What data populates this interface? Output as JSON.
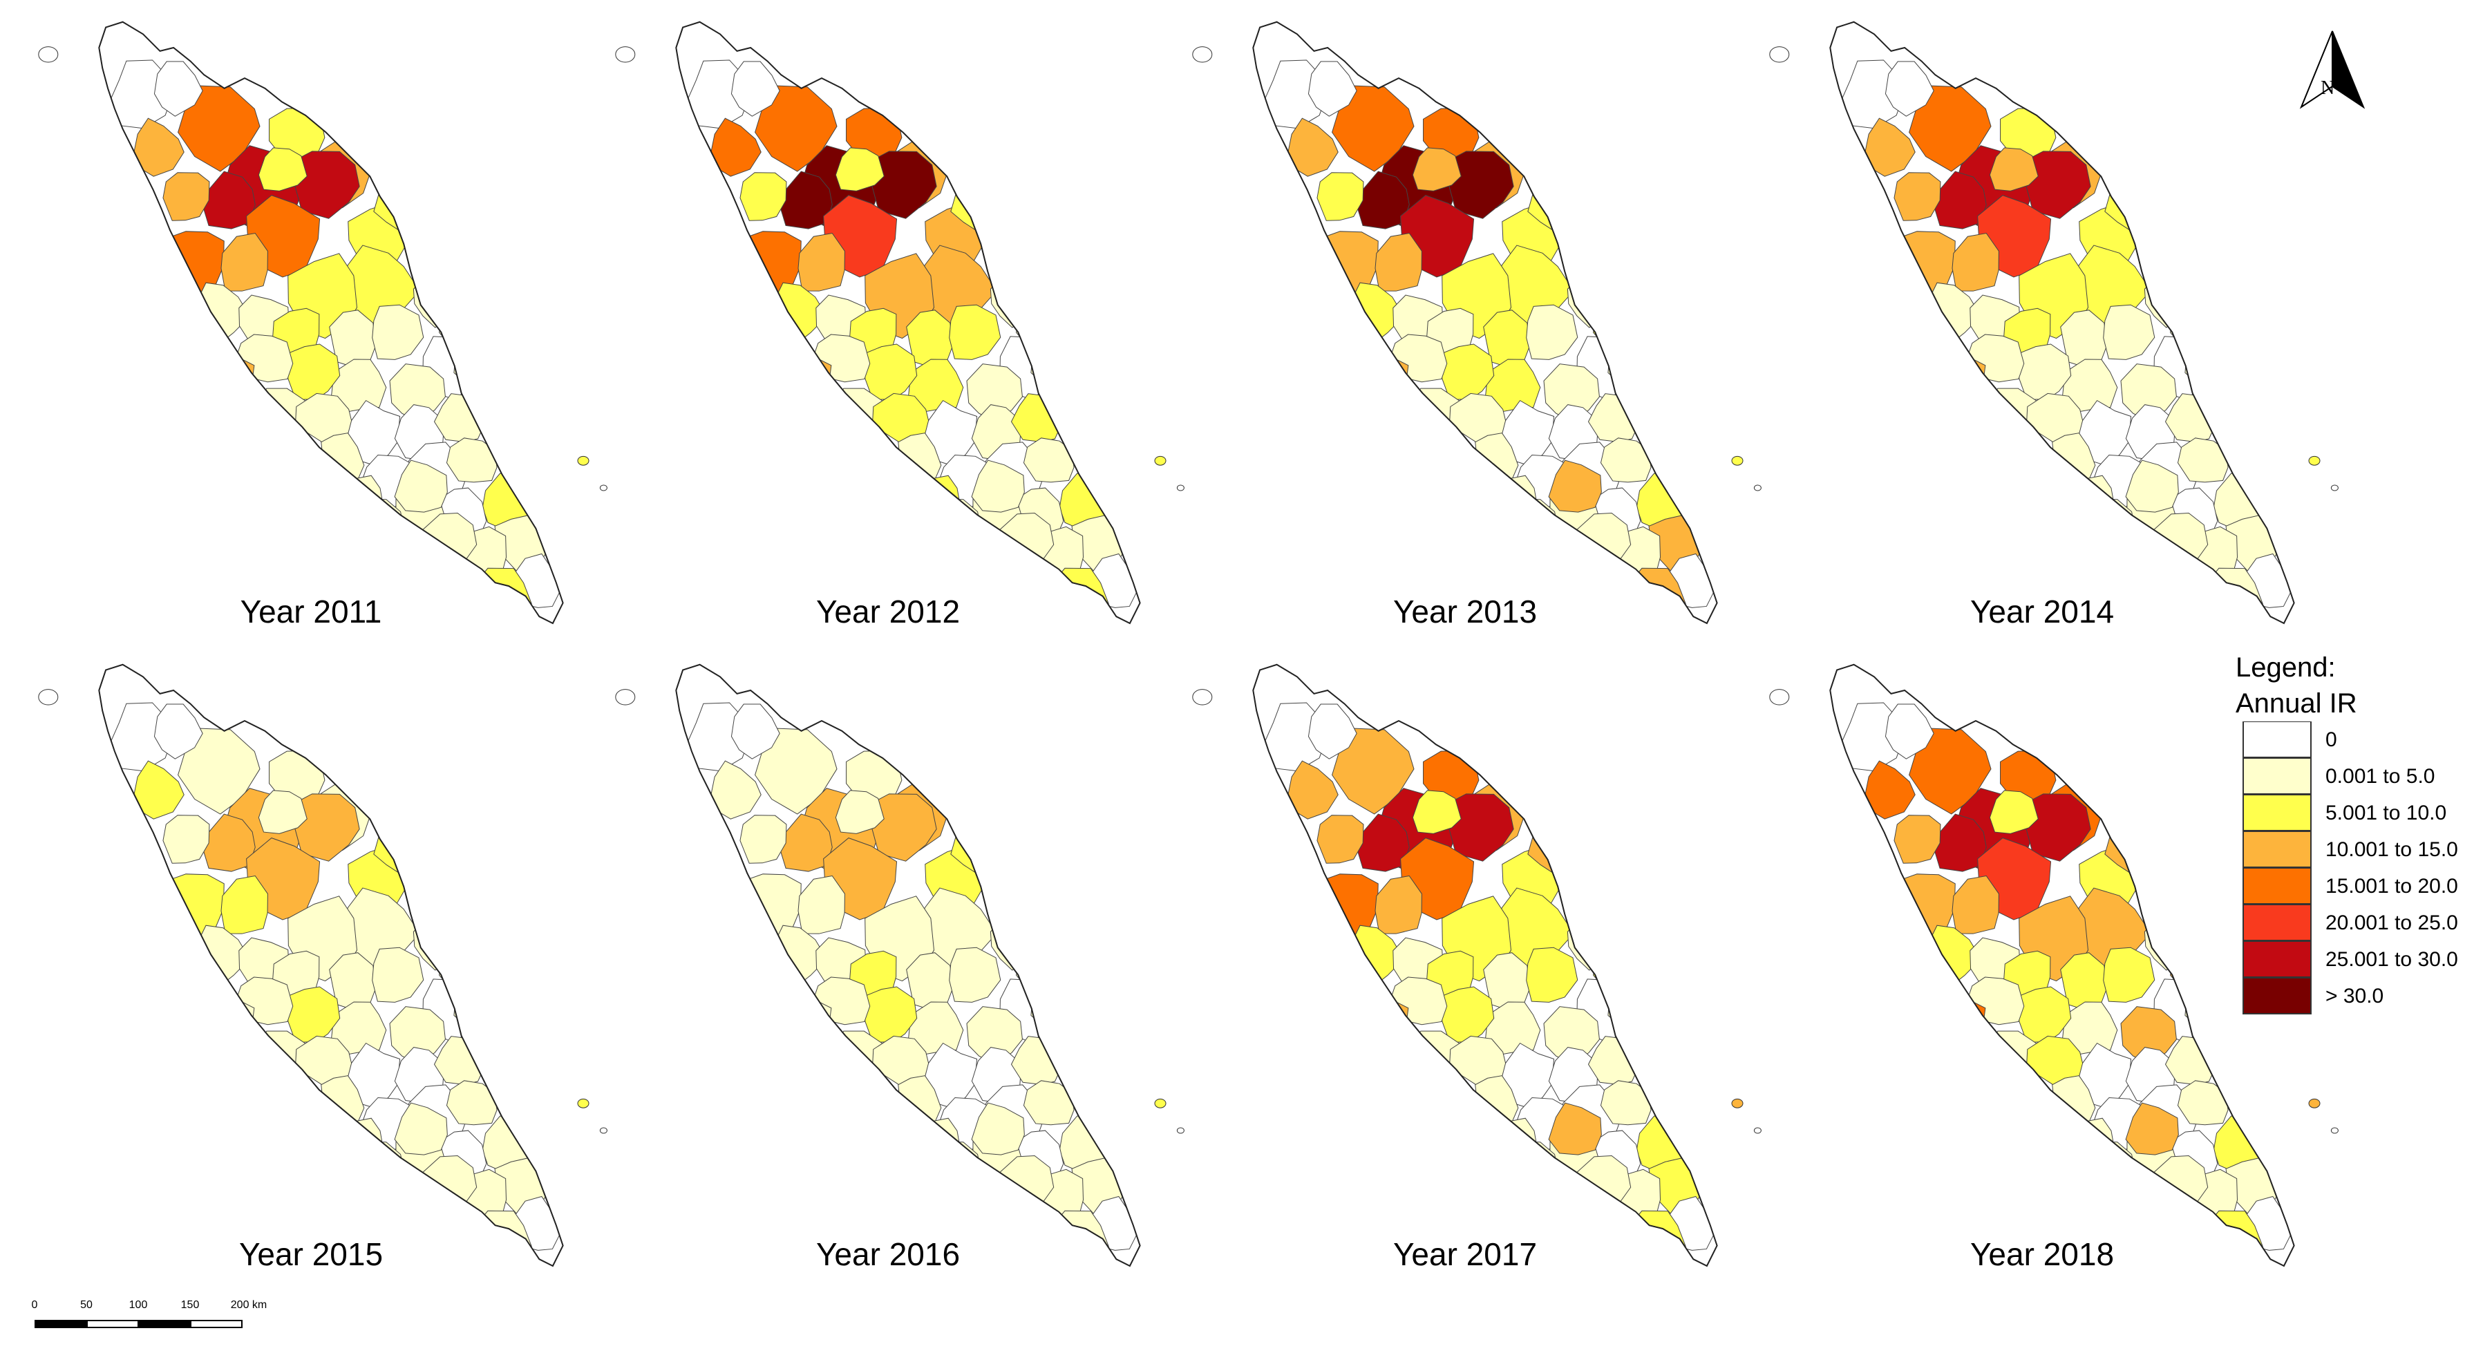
{
  "titles": [
    "Year 2011",
    "Year 2012",
    "Year 2013",
    "Year 2014",
    "Year 2015",
    "Year 2016",
    "Year 2017",
    "Year 2018"
  ],
  "north_label": "N",
  "legend": {
    "title_line1": "Legend:",
    "title_line2": "Annual IR",
    "classes": [
      {
        "label": "0",
        "color": "#ffffff"
      },
      {
        "label": "0.001 to 5.0",
        "color": "#ffffcc"
      },
      {
        "label": "5.001 to 10.0",
        "color": "#ffff4d"
      },
      {
        "label": "10.001 to 15.0",
        "color": "#fdb43c"
      },
      {
        "label": "15.001 to 20.0",
        "color": "#fd7100"
      },
      {
        "label": "20.001 to 25.0",
        "color": "#f93a1e"
      },
      {
        "label": "25.001 to 30.0",
        "color": "#c20a12"
      },
      {
        "label": "> 30.0",
        "color": "#780000"
      }
    ]
  },
  "scale_bar": {
    "ticks": [
      "0",
      "50",
      "100",
      "150",
      "200 km"
    ]
  },
  "district_classes_by_year": [
    [
      0,
      4,
      2,
      3,
      6,
      6,
      6,
      3,
      3,
      2,
      2,
      4,
      4,
      3,
      2,
      2,
      1,
      1,
      2,
      1,
      1,
      0,
      1,
      1,
      2,
      1,
      3,
      1,
      1,
      0,
      0,
      1,
      0,
      0,
      1,
      0,
      1,
      2,
      0,
      1,
      1,
      1,
      1,
      0,
      2,
      1,
      1,
      1,
      1,
      0,
      1,
      0,
      2,
      1,
      1,
      1
    ],
    [
      0,
      4,
      4,
      3,
      7,
      7,
      7,
      4,
      2,
      3,
      2,
      5,
      4,
      3,
      3,
      3,
      2,
      1,
      2,
      2,
      2,
      0,
      1,
      2,
      2,
      1,
      3,
      1,
      2,
      0,
      1,
      2,
      0,
      0,
      1,
      0,
      1,
      2,
      1,
      1,
      1,
      1,
      1,
      0,
      2,
      1,
      1,
      2,
      1,
      0,
      1,
      1,
      2,
      1,
      1,
      1
    ],
    [
      0,
      4,
      4,
      3,
      7,
      7,
      7,
      3,
      2,
      2,
      3,
      6,
      3,
      3,
      2,
      2,
      2,
      1,
      1,
      2,
      1,
      0,
      1,
      2,
      2,
      1,
      3,
      1,
      1,
      0,
      0,
      1,
      0,
      0,
      1,
      0,
      1,
      2,
      0,
      1,
      1,
      3,
      1,
      0,
      3,
      1,
      3,
      1,
      1,
      0,
      1,
      0,
      2,
      1,
      2,
      1
    ],
    [
      0,
      4,
      2,
      3,
      6,
      6,
      6,
      3,
      3,
      2,
      3,
      5,
      3,
      3,
      2,
      2,
      1,
      1,
      2,
      1,
      1,
      0,
      1,
      1,
      1,
      1,
      3,
      1,
      1,
      0,
      0,
      1,
      0,
      0,
      1,
      0,
      1,
      1,
      0,
      1,
      1,
      1,
      1,
      0,
      1,
      1,
      1,
      1,
      1,
      0,
      1,
      0,
      2,
      1,
      1,
      1
    ],
    [
      0,
      1,
      1,
      1,
      3,
      3,
      3,
      2,
      1,
      2,
      1,
      3,
      2,
      2,
      1,
      1,
      1,
      1,
      1,
      1,
      1,
      0,
      1,
      1,
      2,
      1,
      1,
      1,
      1,
      0,
      0,
      1,
      0,
      0,
      1,
      0,
      1,
      1,
      0,
      1,
      1,
      1,
      1,
      0,
      1,
      1,
      1,
      1,
      1,
      0,
      1,
      0,
      2,
      1,
      1,
      1
    ],
    [
      0,
      1,
      1,
      3,
      3,
      3,
      3,
      1,
      1,
      2,
      1,
      3,
      1,
      1,
      1,
      1,
      1,
      1,
      2,
      1,
      1,
      0,
      1,
      1,
      2,
      1,
      1,
      1,
      1,
      0,
      0,
      1,
      0,
      0,
      1,
      0,
      1,
      1,
      0,
      1,
      1,
      1,
      1,
      0,
      1,
      1,
      1,
      1,
      1,
      0,
      1,
      0,
      2,
      1,
      1,
      1
    ],
    [
      0,
      3,
      4,
      3,
      6,
      6,
      6,
      3,
      3,
      2,
      2,
      4,
      4,
      3,
      2,
      2,
      2,
      1,
      2,
      1,
      2,
      0,
      1,
      1,
      2,
      1,
      3,
      1,
      1,
      0,
      0,
      1,
      0,
      0,
      1,
      0,
      1,
      2,
      0,
      1,
      1,
      2,
      1,
      0,
      2,
      1,
      3,
      1,
      1,
      0,
      1,
      0,
      3,
      1,
      2,
      1
    ],
    [
      0,
      4,
      4,
      4,
      6,
      6,
      6,
      4,
      3,
      2,
      2,
      5,
      3,
      3,
      3,
      3,
      2,
      1,
      2,
      2,
      2,
      0,
      3,
      1,
      2,
      1,
      4,
      1,
      2,
      0,
      0,
      1,
      0,
      0,
      1,
      0,
      1,
      2,
      0,
      1,
      1,
      1,
      1,
      0,
      2,
      1,
      3,
      1,
      1,
      0,
      1,
      0,
      3,
      1,
      3,
      1
    ]
  ]
}
